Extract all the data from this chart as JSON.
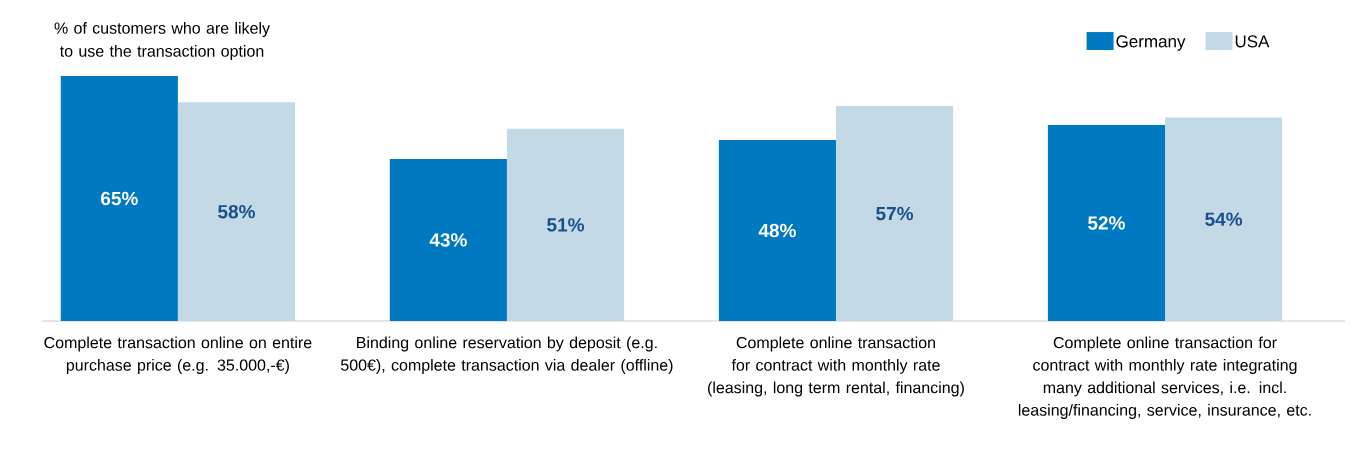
{
  "chart_data": {
    "type": "bar",
    "ylabel": "% of customers who are likely to use the transaction option",
    "categories": [
      "Complete transaction online on entire purchase price (e.g. 35.000,-€)",
      "Binding online reservation by deposit (e.g. 500€), complete transaction via dealer (offline)",
      "Complete online transaction for contract with monthly rate (leasing, long term rental, financing)",
      "Complete online transaction for contract with monthly rate integrating many additional services, i.e. incl. leasing/financing, service, insurance, etc."
    ],
    "series": [
      {
        "name": "Germany",
        "color": "#0079c1",
        "values": [
          65,
          43,
          48,
          52
        ],
        "value_labels": [
          "65%",
          "43%",
          "48%",
          "52%"
        ]
      },
      {
        "name": "USA",
        "color": "#c3d9e6",
        "values": [
          58,
          51,
          57,
          54
        ],
        "value_labels": [
          "58%",
          "51%",
          "57%",
          "54%"
        ]
      }
    ],
    "legend": "top right"
  }
}
